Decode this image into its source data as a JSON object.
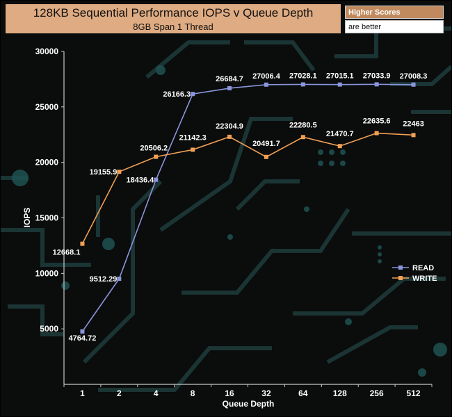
{
  "header": {
    "title": "128KB Sequential Performance IOPS v Queue Depth",
    "subtitle": "8GB Span 1 Thread"
  },
  "note": {
    "line1": "Higher Scores",
    "line2": "are better"
  },
  "colors": {
    "read": "#8a96dc",
    "write": "#f0a054",
    "title_bg": "#dfab82",
    "background": "#0b0c0c"
  },
  "chart_data": {
    "type": "line",
    "title": "128KB Sequential Performance IOPS v Queue Depth",
    "subtitle": "8GB Span 1 Thread",
    "xlabel": "Queue Depth",
    "ylabel": "IOPS",
    "categories": [
      "1",
      "2",
      "4",
      "8",
      "16",
      "32",
      "64",
      "128",
      "256",
      "512"
    ],
    "ylim": [
      0,
      30000
    ],
    "yticks": [
      "5000",
      "10000",
      "15000",
      "20000",
      "25000",
      "30000"
    ],
    "legend_position": "right",
    "series": [
      {
        "name": "READ",
        "values": [
          4764.72,
          9512.29,
          18436.4,
          26166.3,
          26684.7,
          27006.4,
          27028.1,
          27015.1,
          27033.9,
          27008.3
        ],
        "labels": [
          "4764.72",
          "9512.29",
          "18436.4",
          "26166.3",
          "26684.7",
          "27006.4",
          "27028.1",
          "27015.1",
          "27033.9",
          "27008.3"
        ]
      },
      {
        "name": "WRITE",
        "values": [
          12668.1,
          19155.9,
          20506.2,
          21142.3,
          22304.9,
          20491.7,
          22280.5,
          21470.7,
          22635.6,
          22463
        ],
        "labels": [
          "12668.1",
          "19155.9",
          "20506.2",
          "21142.3",
          "22304.9",
          "20491.7",
          "22280.5",
          "21470.7",
          "22635.6",
          "22463"
        ]
      }
    ]
  }
}
